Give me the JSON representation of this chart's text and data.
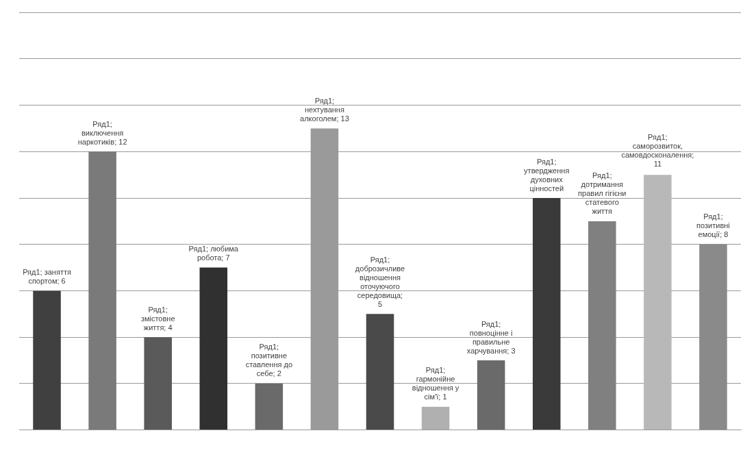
{
  "chart_data": {
    "type": "bar",
    "categories": [
      null,
      null,
      null,
      null,
      null,
      null,
      null,
      null,
      null,
      null,
      null,
      null,
      null
    ],
    "series": [
      {
        "colors": [
          "#404040",
          "#7a7a7a",
          "#5a5a5a",
          "#303030",
          "#6a6a6a",
          "#9a9a9a",
          "#4a4a4a",
          "#b0b0b0",
          "#6a6a6a",
          "#3a3a3a",
          "#808080",
          "#b8b8b8",
          "#8a8a8a"
        ],
        "values": [
          6,
          12,
          4,
          7,
          2,
          13,
          5,
          1,
          3,
          10,
          9,
          11,
          8
        ],
        "value_labels": [
          "Ряд1; заняття спортом; 6",
          "Ряд1; виключення наркотиків; 12",
          "Ряд1; змістовне життя; 4",
          "Ряд1; любима робота; 7",
          "Ряд1; позитивне ставлення до себе; 2",
          "Ряд1; нехтування алкоголем; 13",
          "Ряд1; доброзичливе відношення оточуючого середовища; 5",
          "Ряд1; гармонійне відношення у сім'ї; 1",
          "Ряд1; повноцінне і правильне харчування; 3",
          "Ряд1; утвердження духовних цінностей",
          "Ряд1; дотримання правил гігієни статевого життя",
          "Ряд1; саморозвиток, самовдосконалення; 11",
          "Ряд1; позитивні емоції; 8"
        ]
      }
    ],
    "ylim": [
      0,
      18
    ],
    "yticks": [
      {
        "value": 0,
        "label": null
      },
      {
        "value": 2,
        "label": null
      },
      {
        "value": 4,
        "label": null
      },
      {
        "value": 6,
        "label": null
      },
      {
        "value": 8,
        "label": null
      },
      {
        "value": 10,
        "label": null
      },
      {
        "value": 12,
        "label": null
      },
      {
        "value": 14,
        "label": null
      },
      {
        "value": 16,
        "label": null
      },
      {
        "value": 18,
        "label": null
      }
    ],
    "grid": "y",
    "legend": false
  }
}
